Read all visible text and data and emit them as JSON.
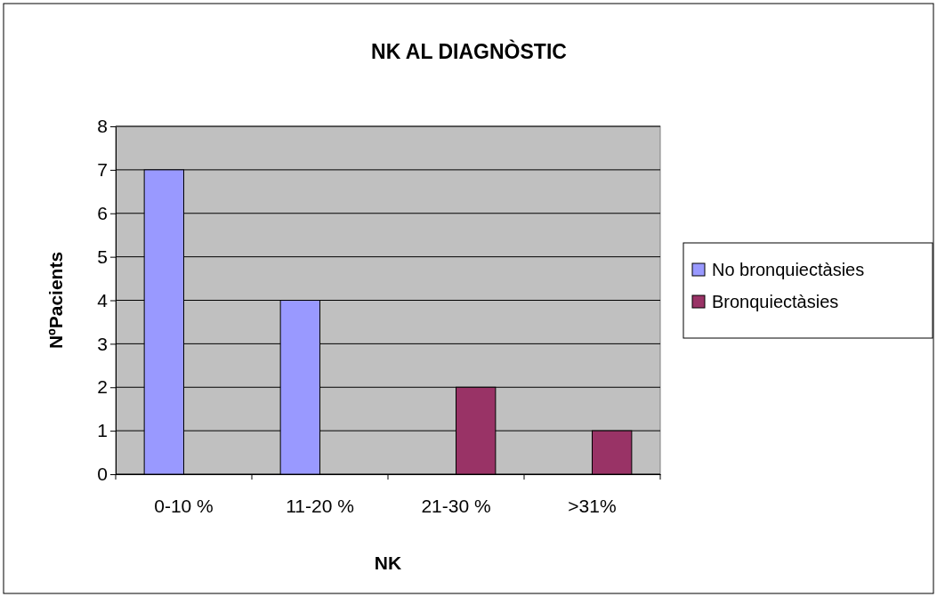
{
  "chart_data": {
    "type": "bar",
    "title": "NK AL DIAGNÒSTIC",
    "xlabel": "NK",
    "ylabel": "NºPacients",
    "categories": [
      "0-10 %",
      "11-20 %",
      "21-30 %",
      ">31%"
    ],
    "series": [
      {
        "name": "No bronquiectàsies",
        "color": "#9999ff",
        "values": [
          7,
          4,
          null,
          null
        ]
      },
      {
        "name": "Bronquiectàsies",
        "color": "#993366",
        "values": [
          null,
          null,
          2,
          1
        ]
      }
    ],
    "ylim": [
      0,
      8
    ],
    "yticks": [
      0,
      1,
      2,
      3,
      4,
      5,
      6,
      7,
      8
    ],
    "grid": "y",
    "legend": "right"
  }
}
